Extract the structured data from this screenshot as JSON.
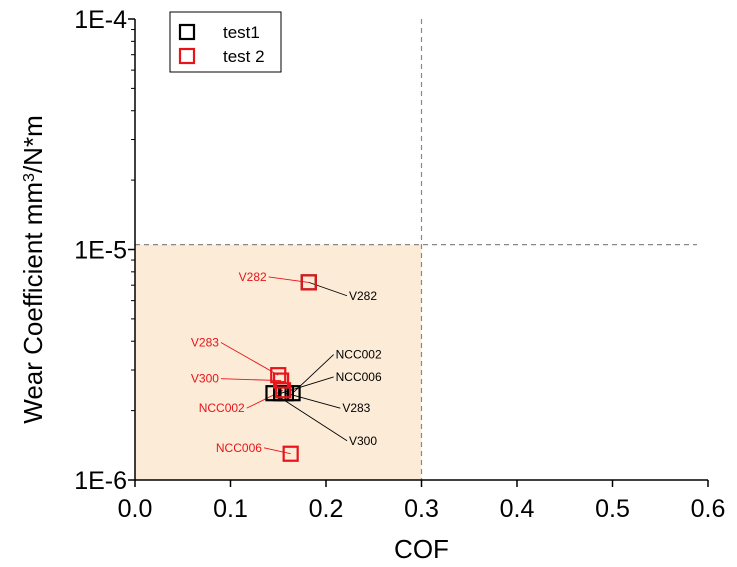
{
  "chart_data": {
    "type": "scatter",
    "xlabel": "COF",
    "ylabel_main": "Wear Coefficient mm",
    "ylabel_sup": "3",
    "ylabel_rest": "/N*m",
    "xlim": [
      0.0,
      0.6
    ],
    "xticks": [
      "0.0",
      "0.1",
      "0.2",
      "0.3",
      "0.4",
      "0.5",
      "0.6"
    ],
    "y_scale": "log",
    "ylim": [
      1e-06,
      0.0001
    ],
    "yticks": [
      "1E-6",
      "1E-5",
      "1E-4"
    ],
    "legend_placement": "top-left",
    "reference_lines": {
      "x": 0.3,
      "y": 1.05e-05
    },
    "highlight_region": {
      "x": [
        0.0,
        0.3
      ],
      "y": [
        1e-06,
        1.05e-05
      ],
      "color": "#fcebd7"
    },
    "colors": {
      "test1": "#000000",
      "test2": "#e8141a",
      "guide": "#888888"
    },
    "series": [
      {
        "name": "test1",
        "color": "#000000",
        "points": [
          {
            "label": "V282",
            "x": 0.182,
            "y": 7.2e-06
          },
          {
            "label": "NCC002",
            "x": 0.165,
            "y": 2.38e-06
          },
          {
            "label": "NCC006",
            "x": 0.153,
            "y": 2.38e-06
          },
          {
            "label": "V283",
            "x": 0.158,
            "y": 2.38e-06
          },
          {
            "label": "V300",
            "x": 0.145,
            "y": 2.38e-06
          }
        ]
      },
      {
        "name": "test 2",
        "color": "#e8141a",
        "points": [
          {
            "label": "V282",
            "x": 0.182,
            "y": 7.2e-06
          },
          {
            "label": "V283",
            "x": 0.15,
            "y": 2.85e-06
          },
          {
            "label": "V300",
            "x": 0.153,
            "y": 2.7e-06
          },
          {
            "label": "NCC002",
            "x": 0.155,
            "y": 2.45e-06
          },
          {
            "label": "NCC006",
            "x": 0.163,
            "y": 1.3e-06
          }
        ]
      }
    ],
    "annotations": [
      {
        "text": "V282",
        "series": 0,
        "point": 0,
        "tx": 0.222,
        "ty": 6.3e-06,
        "anchor": "start"
      },
      {
        "text": "NCC002",
        "series": 0,
        "point": 1,
        "tx": 0.208,
        "ty": 3.5e-06,
        "anchor": "start"
      },
      {
        "text": "NCC006",
        "series": 0,
        "point": 2,
        "tx": 0.208,
        "ty": 2.8e-06,
        "anchor": "start"
      },
      {
        "text": "V283",
        "series": 0,
        "point": 3,
        "tx": 0.215,
        "ty": 2.05e-06,
        "anchor": "start"
      },
      {
        "text": "V300",
        "series": 0,
        "point": 4,
        "tx": 0.222,
        "ty": 1.48e-06,
        "anchor": "start"
      },
      {
        "text": "V282",
        "series": 1,
        "point": 0,
        "tx": 0.14,
        "ty": 7.6e-06,
        "anchor": "end"
      },
      {
        "text": "V283",
        "series": 1,
        "point": 1,
        "tx": 0.09,
        "ty": 3.95e-06,
        "anchor": "end"
      },
      {
        "text": "V300",
        "series": 1,
        "point": 2,
        "tx": 0.09,
        "ty": 2.75e-06,
        "anchor": "end"
      },
      {
        "text": "NCC002",
        "series": 1,
        "point": 3,
        "tx": 0.117,
        "ty": 2.05e-06,
        "anchor": "end"
      },
      {
        "text": "NCC006",
        "series": 1,
        "point": 4,
        "tx": 0.135,
        "ty": 1.38e-06,
        "anchor": "end"
      }
    ]
  }
}
